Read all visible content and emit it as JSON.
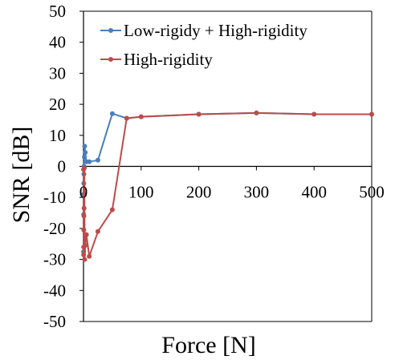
{
  "chart_data": {
    "type": "line",
    "xlabel": "Force [N]",
    "ylabel": "SNR [dB]",
    "xlim": [
      0,
      500
    ],
    "ylim": [
      -50,
      50
    ],
    "x_ticks": [
      0,
      100,
      200,
      300,
      400,
      500
    ],
    "y_ticks": [
      -50,
      -40,
      -30,
      -20,
      -10,
      0,
      10,
      20,
      30,
      40,
      50
    ],
    "x_tick_labels": [
      "0",
      "100",
      "200",
      "300",
      "400",
      "500"
    ],
    "y_tick_labels": [
      "-50",
      "-40",
      "-30",
      "-20",
      "-10",
      "0",
      "10",
      "20",
      "30",
      "40",
      "50"
    ],
    "grid": false,
    "legend_position": "top",
    "series": [
      {
        "name": "Low-rigidy + High-rigidity",
        "color": "#4a7ebb",
        "x": [
          0.1,
          0.2,
          0.3,
          0.5,
          0.7,
          1,
          1.5,
          2,
          3,
          5,
          10,
          25,
          50,
          75,
          100,
          200,
          300,
          400,
          500
        ],
        "y": [
          -27.5,
          -15.5,
          -9,
          -5.5,
          -2.5,
          0,
          3,
          6.5,
          4.5,
          1.5,
          1.5,
          2,
          17,
          15.5,
          16,
          16.8,
          17.2,
          16.8,
          16.8
        ]
      },
      {
        "name": "High-rigidity",
        "color": "#be4b48",
        "x": [
          0.1,
          0.2,
          0.3,
          0.5,
          0.7,
          1,
          1.5,
          2,
          3,
          5,
          10,
          25,
          50,
          75,
          100,
          200,
          300,
          400,
          500
        ],
        "y": [
          -1,
          -28.5,
          -26,
          -20.5,
          -16,
          -13.5,
          -0.5,
          -30,
          -25.5,
          -22,
          -29,
          -21,
          -14,
          15.5,
          16,
          16.8,
          17.2,
          16.8,
          16.8
        ]
      }
    ]
  }
}
